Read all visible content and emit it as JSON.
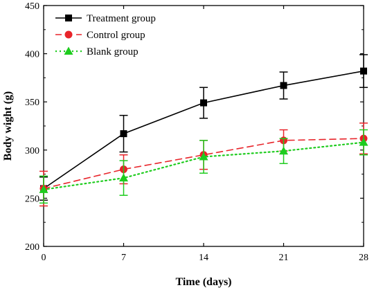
{
  "chart_data": {
    "type": "line",
    "xlabel": "Time (days)",
    "ylabel": "Body wight (g)",
    "xlim": [
      0,
      28
    ],
    "ylim": [
      200,
      450
    ],
    "x_ticks": [
      0,
      7,
      14,
      21,
      28
    ],
    "y_ticks": [
      200,
      250,
      300,
      350,
      400,
      450
    ],
    "grid": false,
    "legend_position": "top-left",
    "x": [
      0,
      7,
      14,
      21,
      28
    ],
    "series": [
      {
        "name": "Treatment group",
        "color": "#000000",
        "marker": "square",
        "line_style": "solid",
        "values": [
          260,
          317,
          349,
          367,
          382
        ],
        "errors": [
          12,
          19,
          16,
          14,
          17
        ]
      },
      {
        "name": "Control group",
        "color": "#e8242a",
        "marker": "circle",
        "line_style": "dashed",
        "values": [
          260,
          280,
          295,
          310,
          312
        ],
        "errors": [
          18,
          15,
          15,
          11,
          16
        ]
      },
      {
        "name": "Blank group",
        "color": "#1ecc1e",
        "marker": "triangle",
        "line_style": "dotted",
        "values": [
          259,
          271,
          293,
          299,
          308
        ],
        "errors": [
          14,
          18,
          17,
          13,
          13
        ]
      }
    ]
  }
}
